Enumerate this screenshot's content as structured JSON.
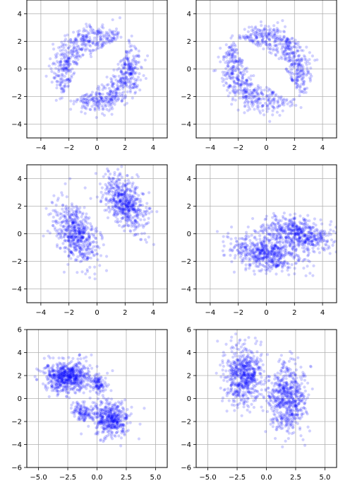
{
  "chart_data": [
    {
      "type": "scatter",
      "title": "",
      "xlabel": "",
      "ylabel": "",
      "xlim": [
        -5,
        5
      ],
      "ylim": [
        -5,
        5
      ],
      "xticks": [
        -4,
        -2,
        0,
        2,
        4
      ],
      "yticks": [
        -4,
        -2,
        0,
        2,
        4
      ],
      "xtick_labels": [
        "−4",
        "−2",
        "0",
        "2",
        "4"
      ],
      "ytick_labels": [
        "−4",
        "−2",
        "0",
        "2",
        "4"
      ],
      "grid": true,
      "color": "#0000ff",
      "series": [
        {
          "shape": "ring",
          "cx": 0,
          "cy": 0,
          "radius": 2.4,
          "spread": 0.75,
          "hole_cx": 0,
          "hole_cy": 0,
          "hole_semi_major": 3.0,
          "hole_semi_minor": 0.9,
          "hole_angle_deg": 45,
          "n": 900
        }
      ]
    },
    {
      "type": "scatter",
      "title": "",
      "xlabel": "",
      "ylabel": "",
      "xlim": [
        -5,
        5
      ],
      "ylim": [
        -5,
        5
      ],
      "xticks": [
        -4,
        -2,
        0,
        2,
        4
      ],
      "yticks": [
        -4,
        -2,
        0,
        2,
        4
      ],
      "xtick_labels": [
        "−4",
        "−2",
        "0",
        "2",
        "4"
      ],
      "ytick_labels": [
        "−4",
        "−2",
        "0",
        "2",
        "4"
      ],
      "grid": true,
      "color": "#0000ff",
      "series": [
        {
          "shape": "ring",
          "cx": 0,
          "cy": 0,
          "radius": 2.4,
          "spread": 0.75,
          "hole_cx": 0,
          "hole_cy": 0,
          "hole_semi_major": 3.0,
          "hole_semi_minor": 0.9,
          "hole_angle_deg": -45,
          "n": 900
        }
      ]
    },
    {
      "type": "scatter",
      "title": "",
      "xlabel": "",
      "ylabel": "",
      "xlim": [
        -5,
        5
      ],
      "ylim": [
        -5,
        5
      ],
      "xticks": [
        -4,
        -2,
        0,
        2,
        4
      ],
      "yticks": [
        -4,
        -2,
        0,
        2,
        4
      ],
      "xtick_labels": [
        "−4",
        "−2",
        "0",
        "2",
        "4"
      ],
      "ytick_labels": [
        "−4",
        "−2",
        "0",
        "2",
        "4"
      ],
      "grid": true,
      "color": "#0000ff",
      "series": [
        {
          "shape": "gaussian",
          "cx": -1.5,
          "cy": 0.0,
          "sx": 0.75,
          "sy": 1.1,
          "corr": -0.45,
          "n": 550
        },
        {
          "shape": "gaussian",
          "cx": 2.0,
          "cy": 2.3,
          "sx": 0.75,
          "sy": 1.0,
          "corr": -0.45,
          "n": 550
        }
      ]
    },
    {
      "type": "scatter",
      "title": "",
      "xlabel": "",
      "ylabel": "",
      "xlim": [
        -5,
        5
      ],
      "ylim": [
        -5,
        5
      ],
      "xticks": [
        -4,
        -2,
        0,
        2,
        4
      ],
      "yticks": [
        -4,
        -2,
        0,
        2,
        4
      ],
      "xtick_labels": [
        "−4",
        "−2",
        "0",
        "2",
        "4"
      ],
      "ytick_labels": [
        "−4",
        "−2",
        "0",
        "2",
        "4"
      ],
      "grid": true,
      "color": "#0000ff",
      "series": [
        {
          "shape": "gaussian",
          "cx": 0.0,
          "cy": -1.5,
          "sx": 1.2,
          "sy": 0.6,
          "corr": -0.3,
          "n": 550
        },
        {
          "shape": "gaussian",
          "cx": 2.2,
          "cy": 0.0,
          "sx": 1.2,
          "sy": 0.6,
          "corr": -0.3,
          "n": 550
        }
      ]
    },
    {
      "type": "scatter",
      "title": "",
      "xlabel": "",
      "ylabel": "",
      "xlim": [
        -6,
        6
      ],
      "ylim": [
        -6,
        6
      ],
      "xticks": [
        -5,
        -2.5,
        0,
        2.5,
        5
      ],
      "yticks": [
        -6,
        -4,
        -2,
        0,
        2,
        4,
        6
      ],
      "xtick_labels": [
        "−5.0",
        "−2.5",
        "0.0",
        "2.5",
        "5.0"
      ],
      "ytick_labels": [
        "−6",
        "−4",
        "−2",
        "0",
        "2",
        "4",
        "6"
      ],
      "grid": true,
      "color": "#0000ff",
      "series": [
        {
          "shape": "gaussian",
          "cx": -2.5,
          "cy": 1.9,
          "sx": 1.0,
          "sy": 0.65,
          "corr": 0.0,
          "n": 650
        },
        {
          "shape": "gaussian",
          "cx": 1.2,
          "cy": -1.8,
          "sx": 0.75,
          "sy": 0.75,
          "corr": 0.0,
          "n": 450
        },
        {
          "shape": "gaussian",
          "cx": -1.2,
          "cy": -1.2,
          "sx": 0.45,
          "sy": 0.4,
          "corr": 0.0,
          "n": 120
        },
        {
          "shape": "gaussian",
          "cx": 0.2,
          "cy": 1.3,
          "sx": 0.35,
          "sy": 0.45,
          "corr": 0.0,
          "n": 100
        }
      ]
    },
    {
      "type": "scatter",
      "title": "",
      "xlabel": "",
      "ylabel": "",
      "xlim": [
        -6,
        6
      ],
      "ylim": [
        -6,
        6
      ],
      "xticks": [
        -5,
        -2.5,
        0,
        2.5,
        5
      ],
      "yticks": [
        -6,
        -4,
        -2,
        0,
        2,
        4,
        6
      ],
      "xtick_labels": [
        "−5.0",
        "−2.5",
        "0.0",
        "2.5",
        "5.0"
      ],
      "ytick_labels": [
        "−6",
        "−4",
        "−2",
        "0",
        "2",
        "4",
        "6"
      ],
      "grid": true,
      "color": "#0000ff",
      "series": [
        {
          "shape": "gaussian",
          "cx": -2.0,
          "cy": 2.0,
          "sx": 0.8,
          "sy": 1.2,
          "corr": 0.0,
          "n": 600
        },
        {
          "shape": "gaussian",
          "cx": 1.8,
          "cy": 0.0,
          "sx": 0.8,
          "sy": 1.4,
          "corr": 0.0,
          "n": 600
        }
      ]
    }
  ]
}
